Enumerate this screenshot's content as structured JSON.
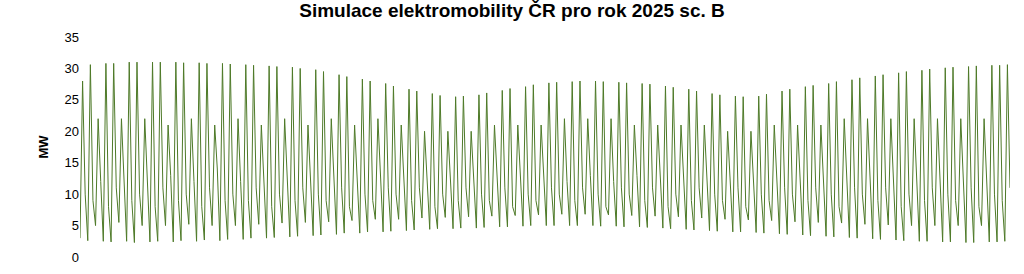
{
  "chart_data": {
    "type": "line",
    "title": "Simulace elektromobility ČR pro rok 2025 sc. B",
    "y_label": "MW",
    "color": "#4e7a28",
    "grid": false,
    "tick_labels": "y",
    "ylim": [
      0,
      35
    ],
    "yticks": [
      0,
      5,
      10,
      15,
      20,
      25,
      30,
      35
    ],
    "values": [
      3,
      28,
      10,
      2.6,
      30.6,
      9,
      5,
      22,
      12,
      2.5,
      30.8,
      8,
      2.4,
      30.8,
      11,
      5.5,
      22,
      13,
      2.5,
      31,
      9,
      2.3,
      31,
      10,
      5,
      22,
      12,
      2.4,
      31,
      8,
      2.5,
      31,
      11,
      5,
      21,
      13,
      2.4,
      31,
      9,
      2.6,
      30.9,
      10,
      5.2,
      22,
      12,
      2.5,
      30.9,
      8,
      2.7,
      30.8,
      11,
      5,
      21,
      14,
      2.6,
      30.8,
      9,
      2.8,
      30.7,
      10,
      5,
      22,
      12,
      2.8,
      30.6,
      9,
      3,
      30.5,
      11,
      5.2,
      21,
      13,
      3,
      30.4,
      8,
      3.1,
      30.3,
      10,
      5.4,
      22,
      12,
      3.2,
      30.2,
      9,
      3.3,
      30,
      11,
      5.5,
      21,
      13,
      3.4,
      29.8,
      10,
      3.5,
      29.5,
      9,
      5.6,
      22,
      12,
      3.6,
      29,
      11,
      3.8,
      28.7,
      8,
      5.8,
      21,
      13,
      3.8,
      28.3,
      10,
      4,
      28,
      9,
      6,
      22,
      12,
      4,
      27.6,
      11,
      4.1,
      27.2,
      10,
      6,
      21,
      13,
      4.2,
      26.7,
      9,
      4.3,
      26.4,
      11,
      6.2,
      20,
      12,
      4.4,
      26,
      8,
      4.5,
      25.7,
      10,
      6.3,
      20,
      13,
      4.5,
      25.5,
      9,
      4.6,
      25.6,
      11,
      6.4,
      20,
      12,
      4.6,
      25.8,
      10,
      4.7,
      26.1,
      9,
      6.5,
      21,
      13,
      4.8,
      26.5,
      11,
      4.8,
      26.8,
      8,
      6.6,
      21,
      12,
      4.9,
      27.1,
      10,
      5,
      27.4,
      9,
      6.7,
      21,
      14,
      5,
      27.7,
      11,
      5,
      27.8,
      10,
      6.8,
      22,
      12,
      5,
      27.9,
      9,
      5,
      28,
      11,
      6.8,
      22,
      13,
      5,
      28,
      10,
      4.9,
      27.9,
      8,
      6.7,
      22,
      12,
      4.9,
      27.8,
      11,
      4.8,
      27.7,
      10,
      6.6,
      21,
      13,
      4.8,
      27.6,
      9,
      4.7,
      27.5,
      11,
      6.5,
      21,
      12,
      4.6,
      27.2,
      8,
      4.5,
      27,
      10,
      6.4,
      21,
      13,
      4.4,
      26.7,
      9,
      4.3,
      26.4,
      11,
      6.2,
      21,
      12,
      4.2,
      26,
      10,
      4.1,
      25.8,
      9,
      6,
      20,
      13,
      4,
      25.6,
      11,
      4,
      25.5,
      8,
      5.9,
      20,
      12,
      3.9,
      25.6,
      10,
      3.8,
      25.9,
      9,
      5.8,
      21,
      13,
      3.7,
      26.4,
      11,
      3.6,
      26.7,
      10,
      5.6,
      21,
      12,
      3.5,
      27.1,
      9,
      3.4,
      27.3,
      11,
      5.5,
      21,
      13,
      3.3,
      27.6,
      10,
      3.2,
      27.9,
      8,
      5.4,
      22,
      12,
      3.1,
      28.2,
      11,
      3,
      28.5,
      10,
      5.2,
      22,
      13,
      2.9,
      28.8,
      9,
      2.8,
      29,
      11,
      5.1,
      22,
      12,
      2.7,
      29.3,
      8,
      2.6,
      29.5,
      10,
      5,
      22,
      13,
      2.5,
      29.7,
      9,
      2.5,
      29.9,
      11,
      5,
      22,
      12,
      2.4,
      30.1,
      10,
      2.4,
      30.2,
      9,
      5,
      22,
      13,
      2.3,
      30.3,
      11,
      2.3,
      30.4,
      8,
      5,
      22,
      12,
      2.4,
      30.5,
      10,
      2.4,
      30.5,
      9,
      2.5,
      30.6,
      11
    ]
  }
}
